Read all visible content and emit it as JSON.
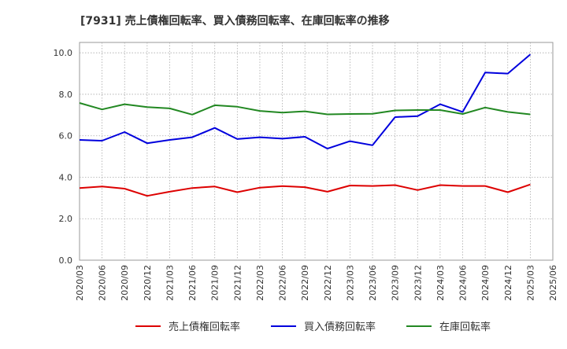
{
  "chart_data": {
    "type": "line",
    "title": "[7931]  売上債権回転率、買入債務回転率、在庫回転率の推移",
    "xlabel": "",
    "ylabel": "",
    "ylim": [
      0,
      10.5
    ],
    "yticks": [
      0,
      2,
      4,
      6,
      8,
      10
    ],
    "ytick_labels": [
      "0.0",
      "2.0",
      "4.0",
      "6.0",
      "8.0",
      "10.0"
    ],
    "grid": true,
    "legend_position": "bottom",
    "categories": [
      "2020/03",
      "2020/06",
      "2020/09",
      "2020/12",
      "2021/03",
      "2021/06",
      "2021/09",
      "2021/12",
      "2022/03",
      "2022/06",
      "2022/09",
      "2022/12",
      "2023/03",
      "2023/06",
      "2023/09",
      "2023/12",
      "2024/03",
      "2024/06",
      "2024/09",
      "2024/12",
      "2025/03",
      "2025/06"
    ],
    "series": [
      {
        "name": "売上債権回転率",
        "color": "#dd0000",
        "values": [
          3.48,
          3.55,
          3.45,
          3.1,
          3.3,
          3.48,
          3.55,
          3.28,
          3.5,
          3.57,
          3.52,
          3.3,
          3.6,
          3.58,
          3.62,
          3.38,
          3.62,
          3.58,
          3.58,
          3.28,
          3.65,
          null
        ]
      },
      {
        "name": "買入債務回転率",
        "color": "#0000dd",
        "values": [
          5.8,
          5.76,
          6.18,
          5.64,
          5.8,
          5.93,
          6.38,
          5.84,
          5.93,
          5.86,
          5.95,
          5.38,
          5.74,
          5.54,
          6.9,
          6.95,
          7.52,
          7.15,
          9.05,
          9.0,
          9.92,
          null
        ]
      },
      {
        "name": "在庫回転率",
        "color": "#228822",
        "values": [
          7.58,
          7.27,
          7.52,
          7.38,
          7.32,
          7.02,
          7.47,
          7.4,
          7.2,
          7.12,
          7.18,
          7.03,
          7.05,
          7.06,
          7.22,
          7.24,
          7.24,
          7.05,
          7.36,
          7.15,
          7.03,
          null
        ]
      }
    ]
  }
}
